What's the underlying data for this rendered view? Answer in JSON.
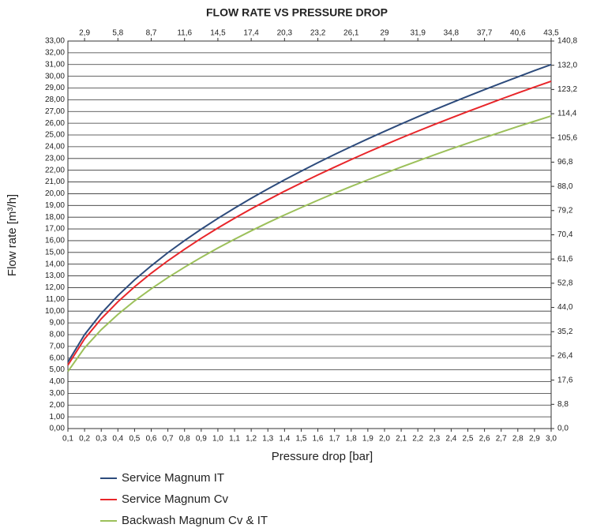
{
  "chart_data": {
    "type": "line",
    "title": "FLOW RATE VS PRESSURE DROP",
    "x_label": "Pressure drop [bar]",
    "y_label": "Flow rate [m³/h]",
    "x": [
      0.1,
      0.2,
      0.3,
      0.4,
      0.5,
      0.6,
      0.7,
      0.8,
      0.9,
      1.0,
      1.1,
      1.2,
      1.3,
      1.4,
      1.5,
      1.6,
      1.7,
      1.8,
      1.9,
      2.0,
      2.1,
      2.2,
      2.3,
      2.4,
      2.5,
      2.6,
      2.7,
      2.8,
      2.9,
      3.0
    ],
    "series": [
      {
        "name": "Service Magnum IT",
        "color": "#2d4b7c",
        "values": [
          5.66,
          8.0,
          9.8,
          11.32,
          12.66,
          13.86,
          14.98,
          16.01,
          16.98,
          17.9,
          18.77,
          19.61,
          20.41,
          21.18,
          21.92,
          22.64,
          23.34,
          24.01,
          24.67,
          25.31,
          25.94,
          26.55,
          27.15,
          27.73,
          28.3,
          28.86,
          29.41,
          29.95,
          30.48,
          31.0
        ]
      },
      {
        "name": "Service Magnum Cv",
        "color": "#e8262a",
        "values": [
          5.4,
          7.64,
          9.35,
          10.8,
          12.07,
          13.23,
          14.29,
          15.27,
          16.2,
          17.08,
          17.91,
          18.71,
          19.47,
          20.21,
          20.91,
          21.6,
          22.26,
          22.91,
          23.54,
          24.15,
          24.75,
          25.33,
          25.9,
          26.45,
          27.0,
          27.53,
          28.06,
          28.58,
          29.08,
          29.58
        ]
      },
      {
        "name": "Backwash Magnum Cv & IT",
        "color": "#9cc05a",
        "values": [
          4.86,
          6.87,
          8.42,
          9.72,
          10.87,
          11.9,
          12.86,
          13.74,
          14.58,
          15.37,
          16.12,
          16.84,
          17.53,
          18.19,
          18.82,
          19.44,
          20.04,
          20.62,
          21.18,
          21.73,
          22.27,
          22.79,
          23.31,
          23.81,
          24.3,
          24.78,
          25.25,
          25.72,
          26.17,
          26.62
        ]
      }
    ],
    "xlim": [
      0.1,
      3.0
    ],
    "xticks": [
      {
        "value": 0.1,
        "label": "0,1"
      },
      {
        "value": 0.2,
        "label": "0,2"
      },
      {
        "value": 0.3,
        "label": "0,3"
      },
      {
        "value": 0.4,
        "label": "0,4"
      },
      {
        "value": 0.5,
        "label": "0,5"
      },
      {
        "value": 0.6,
        "label": "0,6"
      },
      {
        "value": 0.7,
        "label": "0,7"
      },
      {
        "value": 0.8,
        "label": "0,8"
      },
      {
        "value": 0.9,
        "label": "0,9"
      },
      {
        "value": 1.0,
        "label": "1,0"
      },
      {
        "value": 1.1,
        "label": "1,1"
      },
      {
        "value": 1.2,
        "label": "1,2"
      },
      {
        "value": 1.3,
        "label": "1,3"
      },
      {
        "value": 1.4,
        "label": "1,4"
      },
      {
        "value": 1.5,
        "label": "1,5"
      },
      {
        "value": 1.6,
        "label": "1,6"
      },
      {
        "value": 1.7,
        "label": "1,7"
      },
      {
        "value": 1.8,
        "label": "1,8"
      },
      {
        "value": 1.9,
        "label": "1,9"
      },
      {
        "value": 2.0,
        "label": "2,0"
      },
      {
        "value": 2.1,
        "label": "2,1"
      },
      {
        "value": 2.2,
        "label": "2,2"
      },
      {
        "value": 2.3,
        "label": "2,3"
      },
      {
        "value": 2.4,
        "label": "2,4"
      },
      {
        "value": 2.5,
        "label": "2,5"
      },
      {
        "value": 2.6,
        "label": "2,6"
      },
      {
        "value": 2.7,
        "label": "2,7"
      },
      {
        "value": 2.8,
        "label": "2,8"
      },
      {
        "value": 2.9,
        "label": "2,9"
      },
      {
        "value": 3.0,
        "label": "3,0"
      }
    ],
    "x2lim": [
      1.45,
      43.5
    ],
    "x2ticks": [
      {
        "value": 2.9,
        "label": "2,9"
      },
      {
        "value": 5.8,
        "label": "5,8"
      },
      {
        "value": 8.7,
        "label": "8,7"
      },
      {
        "value": 11.6,
        "label": "11,6"
      },
      {
        "value": 14.5,
        "label": "14,5"
      },
      {
        "value": 17.4,
        "label": "17,4"
      },
      {
        "value": 20.3,
        "label": "20,3"
      },
      {
        "value": 23.2,
        "label": "23,2"
      },
      {
        "value": 26.1,
        "label": "26,1"
      },
      29,
      {
        "value": 31.9,
        "label": "31,9"
      },
      {
        "value": 34.8,
        "label": "34,8"
      },
      {
        "value": 37.7,
        "label": "37,7"
      },
      {
        "value": 40.6,
        "label": "40,6"
      },
      {
        "value": 43.5,
        "label": "43,5"
      }
    ],
    "ylim": [
      0,
      33
    ],
    "yticks": [
      {
        "value": 0,
        "label": "0,00"
      },
      {
        "value": 1,
        "label": "1,00"
      },
      {
        "value": 2,
        "label": "2,00"
      },
      {
        "value": 3,
        "label": "3,00"
      },
      {
        "value": 4,
        "label": "4,00"
      },
      {
        "value": 5,
        "label": "5,00"
      },
      {
        "value": 6,
        "label": "6,00"
      },
      {
        "value": 7,
        "label": "7,00"
      },
      {
        "value": 8,
        "label": "8,00"
      },
      {
        "value": 9,
        "label": "9,00"
      },
      {
        "value": 10,
        "label": "10,00"
      },
      {
        "value": 11,
        "label": "11,00"
      },
      {
        "value": 12,
        "label": "12,00"
      },
      {
        "value": 13,
        "label": "13,00"
      },
      {
        "value": 14,
        "label": "14,00"
      },
      {
        "value": 15,
        "label": "15,00"
      },
      {
        "value": 16,
        "label": "16,00"
      },
      {
        "value": 17,
        "label": "17,00"
      },
      {
        "value": 18,
        "label": "18,00"
      },
      {
        "value": 19,
        "label": "19,00"
      },
      {
        "value": 20,
        "label": "20,00"
      },
      {
        "value": 21,
        "label": "21,00"
      },
      {
        "value": 22,
        "label": "22,00"
      },
      {
        "value": 23,
        "label": "23,00"
      },
      {
        "value": 24,
        "label": "24,00"
      },
      {
        "value": 25,
        "label": "25,00"
      },
      {
        "value": 26,
        "label": "26,00"
      },
      {
        "value": 27,
        "label": "27,00"
      },
      {
        "value": 28,
        "label": "28,00"
      },
      {
        "value": 29,
        "label": "29,00"
      },
      {
        "value": 30,
        "label": "30,00"
      },
      {
        "value": 31,
        "label": "31,00"
      },
      {
        "value": 32,
        "label": "32,00"
      },
      {
        "value": 33,
        "label": "33,00"
      }
    ],
    "y2lim": [
      0,
      140.8
    ],
    "y2ticks": [
      {
        "value": 0,
        "label": "0,0"
      },
      {
        "value": 8.8,
        "label": "8,8"
      },
      {
        "value": 17.6,
        "label": "17,6"
      },
      {
        "value": 26.4,
        "label": "26,4"
      },
      {
        "value": 35.2,
        "label": "35,2"
      },
      {
        "value": 44,
        "label": "44,0"
      },
      {
        "value": 52.8,
        "label": "52,8"
      },
      {
        "value": 61.6,
        "label": "61,6"
      },
      {
        "value": 70.4,
        "label": "70,4"
      },
      {
        "value": 79.2,
        "label": "79,2"
      },
      {
        "value": 88,
        "label": "88,0"
      },
      {
        "value": 96.8,
        "label": "96,8"
      },
      {
        "value": 105.6,
        "label": "105,6"
      },
      {
        "value": 114.4,
        "label": "114,4"
      },
      {
        "value": 123.2,
        "label": "123,2"
      },
      {
        "value": 132,
        "label": "132,0"
      },
      {
        "value": 140.8,
        "label": "140,8"
      }
    ],
    "grid": true
  }
}
